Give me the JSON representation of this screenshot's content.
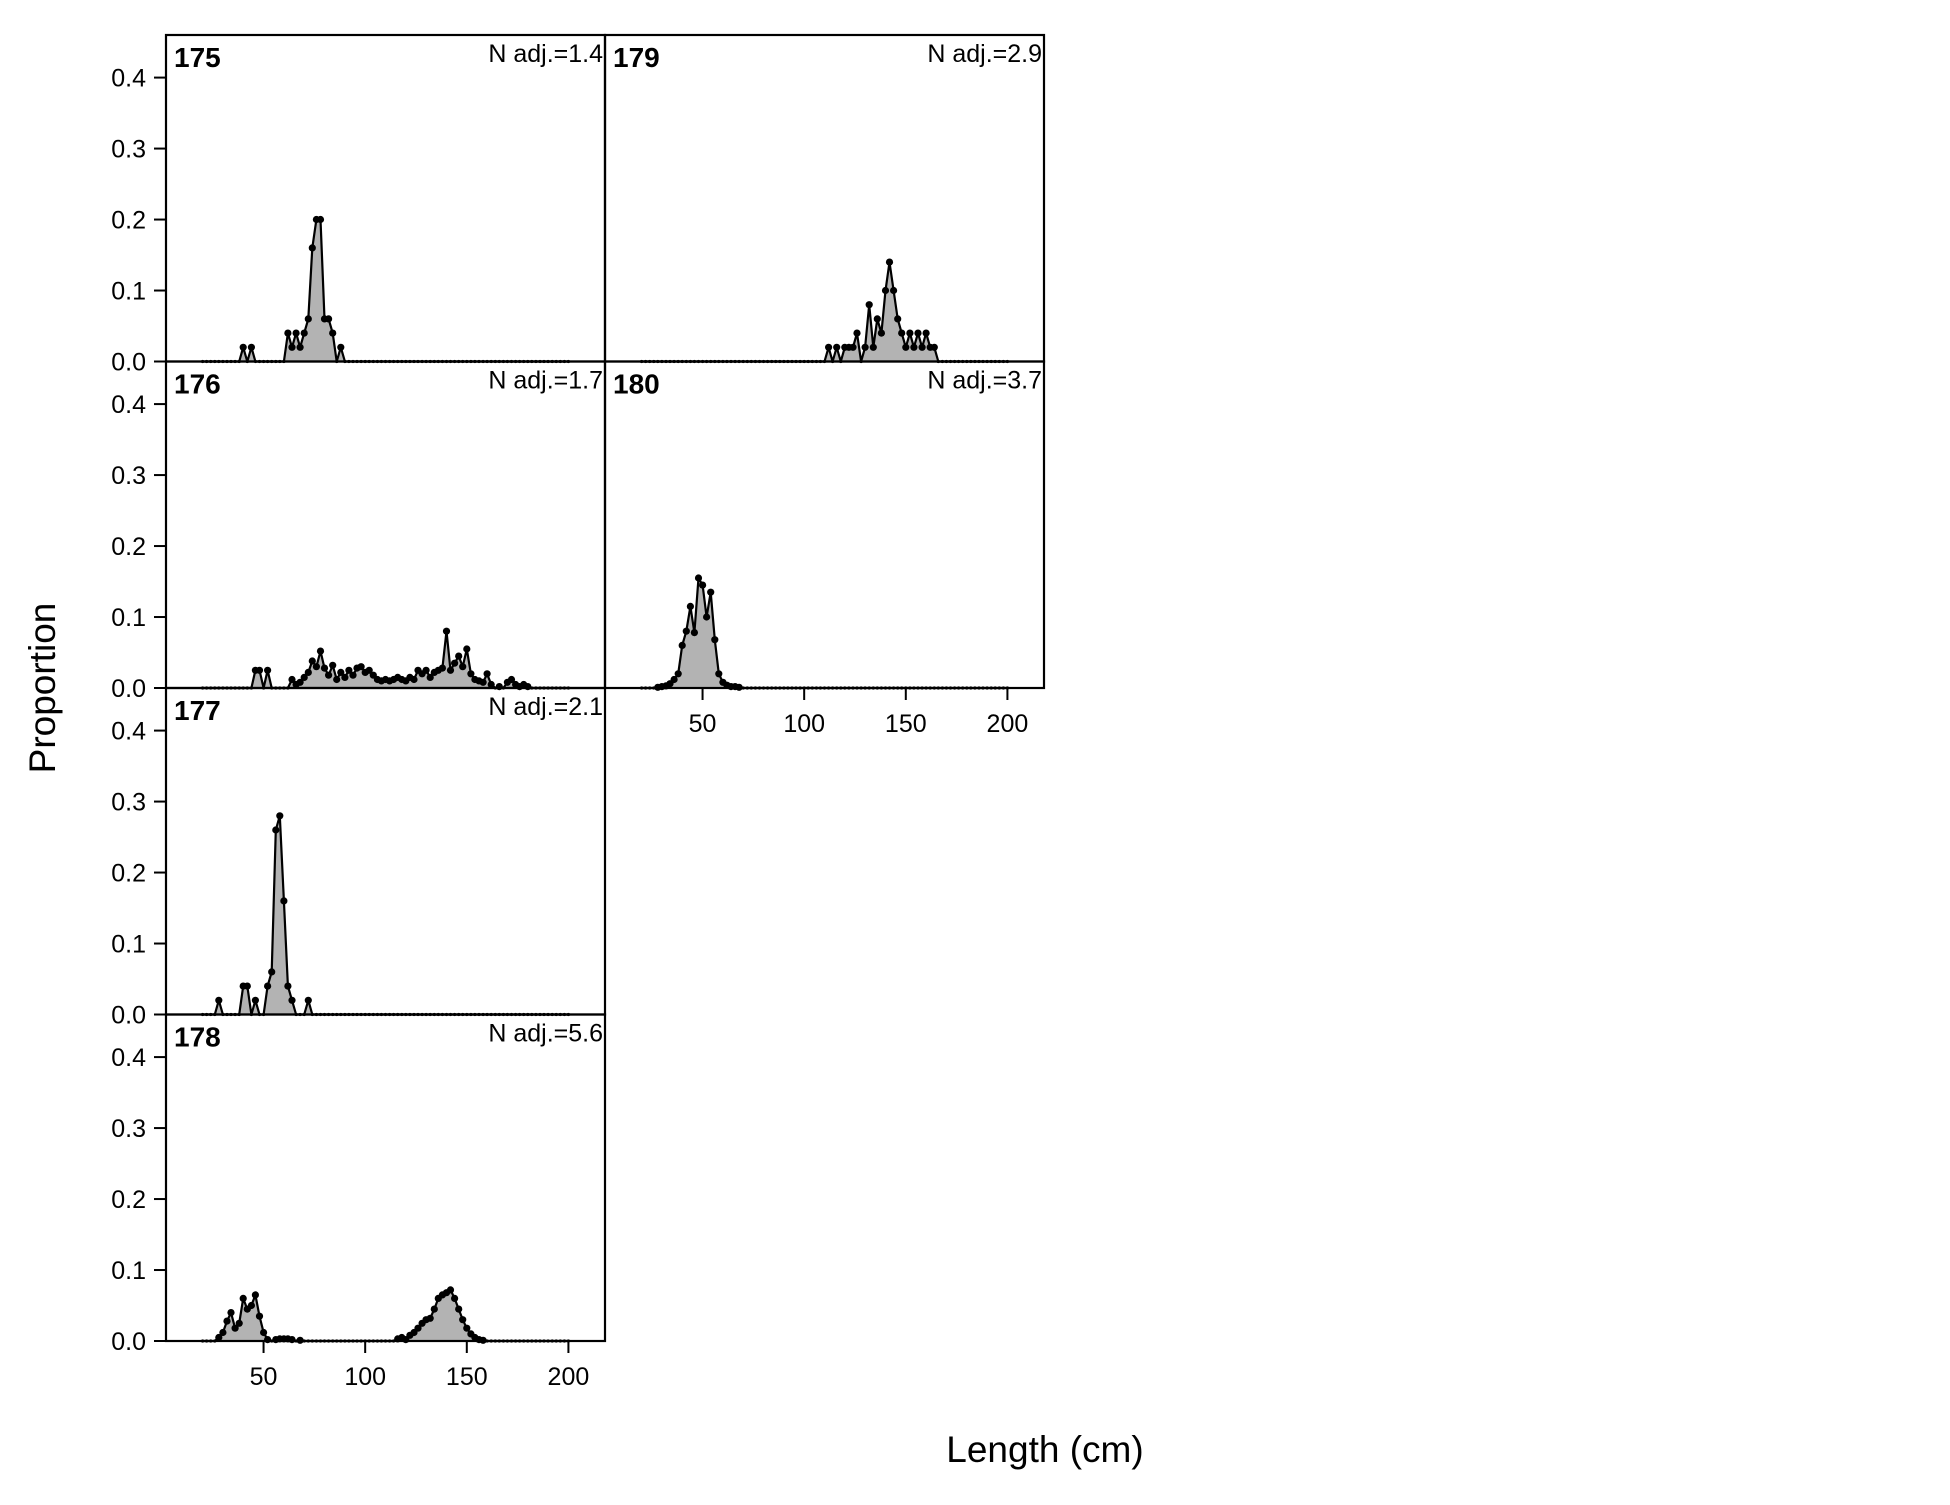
{
  "chart_data": {
    "type": "area",
    "xlabel": "Length (cm)",
    "ylabel": "Proportion",
    "xlim": [
      2,
      218
    ],
    "ylim": [
      0,
      0.46
    ],
    "x_ticks": [
      50,
      100,
      150,
      200
    ],
    "y_ticks": [
      0.0,
      0.1,
      0.2,
      0.3,
      0.4
    ],
    "x_tick_labels": [
      "50",
      "100",
      "150",
      "200"
    ],
    "y_tick_labels": [
      "0.0",
      "0.1",
      "0.2",
      "0.3",
      "0.4"
    ],
    "grid": false,
    "legend": "none",
    "bin_start": 20,
    "bin_width": 2,
    "n_bins": 91,
    "colors": {
      "fill": "#b3b3b3",
      "line": "#000000",
      "frame": "#000000"
    },
    "panels": [
      {
        "id": "175",
        "n_adj": "N adj.=1.4",
        "points": [
          [
            40,
            0.02
          ],
          [
            42,
            0.0
          ],
          [
            44,
            0.02
          ],
          [
            60,
            0.0
          ],
          [
            62,
            0.04
          ],
          [
            64,
            0.02
          ],
          [
            66,
            0.04
          ],
          [
            68,
            0.02
          ],
          [
            70,
            0.04
          ],
          [
            72,
            0.06
          ],
          [
            74,
            0.16
          ],
          [
            76,
            0.2
          ],
          [
            78,
            0.2
          ],
          [
            80,
            0.06
          ],
          [
            82,
            0.06
          ],
          [
            84,
            0.04
          ],
          [
            86,
            0.0
          ],
          [
            88,
            0.02
          ]
        ]
      },
      {
        "id": "176",
        "n_adj": "N adj.=1.7",
        "points": [
          [
            44,
            0.0
          ],
          [
            46,
            0.025
          ],
          [
            48,
            0.025
          ],
          [
            50,
            0.0
          ],
          [
            52,
            0.025
          ],
          [
            56,
            0.0
          ],
          [
            64,
            0.012
          ],
          [
            66,
            0.005
          ],
          [
            68,
            0.008
          ],
          [
            70,
            0.015
          ],
          [
            72,
            0.022
          ],
          [
            74,
            0.038
          ],
          [
            76,
            0.03
          ],
          [
            78,
            0.052
          ],
          [
            80,
            0.028
          ],
          [
            82,
            0.018
          ],
          [
            84,
            0.032
          ],
          [
            86,
            0.012
          ],
          [
            88,
            0.022
          ],
          [
            90,
            0.015
          ],
          [
            92,
            0.025
          ],
          [
            94,
            0.018
          ],
          [
            96,
            0.028
          ],
          [
            98,
            0.03
          ],
          [
            100,
            0.022
          ],
          [
            102,
            0.025
          ],
          [
            104,
            0.018
          ],
          [
            106,
            0.012
          ],
          [
            108,
            0.01
          ],
          [
            110,
            0.012
          ],
          [
            112,
            0.01
          ],
          [
            114,
            0.012
          ],
          [
            116,
            0.015
          ],
          [
            118,
            0.012
          ],
          [
            120,
            0.01
          ],
          [
            122,
            0.015
          ],
          [
            124,
            0.012
          ],
          [
            126,
            0.025
          ],
          [
            128,
            0.02
          ],
          [
            130,
            0.025
          ],
          [
            132,
            0.015
          ],
          [
            134,
            0.022
          ],
          [
            136,
            0.025
          ],
          [
            138,
            0.028
          ],
          [
            140,
            0.08
          ],
          [
            142,
            0.025
          ],
          [
            144,
            0.035
          ],
          [
            146,
            0.045
          ],
          [
            148,
            0.03
          ],
          [
            150,
            0.055
          ],
          [
            152,
            0.02
          ],
          [
            154,
            0.012
          ],
          [
            156,
            0.01
          ],
          [
            158,
            0.008
          ],
          [
            160,
            0.02
          ],
          [
            162,
            0.005
          ],
          [
            166,
            0.002
          ],
          [
            170,
            0.008
          ],
          [
            172,
            0.012
          ],
          [
            174,
            0.005
          ],
          [
            176,
            0.002
          ],
          [
            178,
            0.005
          ],
          [
            180,
            0.002
          ]
        ]
      },
      {
        "id": "177",
        "n_adj": "N adj.=2.1",
        "points": [
          [
            26,
            0.0
          ],
          [
            28,
            0.02
          ],
          [
            30,
            0.0
          ],
          [
            38,
            0.0
          ],
          [
            40,
            0.04
          ],
          [
            42,
            0.04
          ],
          [
            44,
            0.0
          ],
          [
            46,
            0.02
          ],
          [
            48,
            0.0
          ],
          [
            50,
            0.0
          ],
          [
            52,
            0.04
          ],
          [
            54,
            0.06
          ],
          [
            56,
            0.26
          ],
          [
            58,
            0.28
          ],
          [
            60,
            0.16
          ],
          [
            62,
            0.04
          ],
          [
            64,
            0.02
          ],
          [
            66,
            0.0
          ],
          [
            70,
            0.0
          ],
          [
            72,
            0.02
          ],
          [
            74,
            0.0
          ]
        ]
      },
      {
        "id": "178",
        "n_adj": "N adj.=5.6",
        "points": [
          [
            28,
            0.005
          ],
          [
            30,
            0.012
          ],
          [
            32,
            0.028
          ],
          [
            34,
            0.04
          ],
          [
            36,
            0.018
          ],
          [
            38,
            0.025
          ],
          [
            40,
            0.06
          ],
          [
            42,
            0.045
          ],
          [
            44,
            0.05
          ],
          [
            46,
            0.065
          ],
          [
            48,
            0.035
          ],
          [
            50,
            0.012
          ],
          [
            52,
            0.002
          ],
          [
            56,
            0.002
          ],
          [
            58,
            0.003
          ],
          [
            60,
            0.003
          ],
          [
            62,
            0.003
          ],
          [
            64,
            0.002
          ],
          [
            68,
            0.001
          ],
          [
            116,
            0.003
          ],
          [
            118,
            0.005
          ],
          [
            120,
            0.002
          ],
          [
            122,
            0.008
          ],
          [
            124,
            0.012
          ],
          [
            126,
            0.018
          ],
          [
            128,
            0.025
          ],
          [
            130,
            0.03
          ],
          [
            132,
            0.032
          ],
          [
            134,
            0.045
          ],
          [
            136,
            0.06
          ],
          [
            138,
            0.065
          ],
          [
            140,
            0.068
          ],
          [
            142,
            0.072
          ],
          [
            144,
            0.06
          ],
          [
            146,
            0.045
          ],
          [
            148,
            0.03
          ],
          [
            150,
            0.018
          ],
          [
            152,
            0.01
          ],
          [
            154,
            0.005
          ],
          [
            156,
            0.002
          ],
          [
            158,
            0.001
          ]
        ]
      },
      {
        "id": "179",
        "n_adj": "N adj.=2.9",
        "points": [
          [
            110,
            0.0
          ],
          [
            112,
            0.02
          ],
          [
            114,
            0.0
          ],
          [
            116,
            0.02
          ],
          [
            118,
            0.0
          ],
          [
            120,
            0.02
          ],
          [
            122,
            0.02
          ],
          [
            124,
            0.02
          ],
          [
            126,
            0.04
          ],
          [
            128,
            0.0
          ],
          [
            130,
            0.02
          ],
          [
            132,
            0.08
          ],
          [
            134,
            0.02
          ],
          [
            136,
            0.06
          ],
          [
            138,
            0.04
          ],
          [
            140,
            0.1
          ],
          [
            142,
            0.14
          ],
          [
            144,
            0.1
          ],
          [
            146,
            0.06
          ],
          [
            148,
            0.04
          ],
          [
            150,
            0.02
          ],
          [
            152,
            0.04
          ],
          [
            154,
            0.02
          ],
          [
            156,
            0.04
          ],
          [
            158,
            0.02
          ],
          [
            160,
            0.04
          ],
          [
            162,
            0.02
          ],
          [
            164,
            0.02
          ]
        ]
      },
      {
        "id": "180",
        "n_adj": "N adj.=3.7",
        "points": [
          [
            28,
            0.001
          ],
          [
            30,
            0.002
          ],
          [
            32,
            0.003
          ],
          [
            34,
            0.006
          ],
          [
            36,
            0.012
          ],
          [
            38,
            0.02
          ],
          [
            40,
            0.06
          ],
          [
            42,
            0.08
          ],
          [
            44,
            0.115
          ],
          [
            46,
            0.078
          ],
          [
            48,
            0.155
          ],
          [
            50,
            0.145
          ],
          [
            52,
            0.1
          ],
          [
            54,
            0.135
          ],
          [
            56,
            0.068
          ],
          [
            58,
            0.02
          ],
          [
            60,
            0.008
          ],
          [
            62,
            0.004
          ],
          [
            64,
            0.002
          ],
          [
            66,
            0.002
          ],
          [
            68,
            0.001
          ]
        ]
      }
    ]
  }
}
